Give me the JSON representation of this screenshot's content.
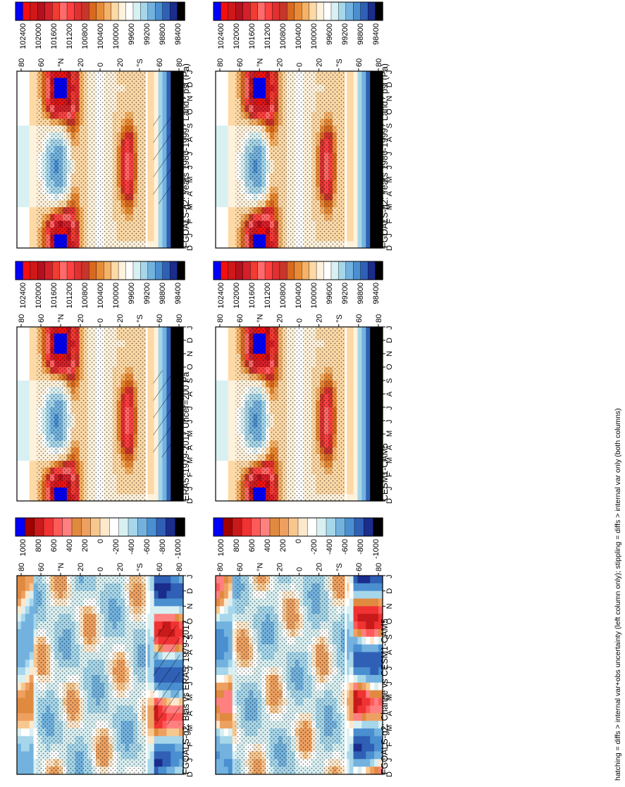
{
  "figure_caption": "hatching = diffs > internal var+obs uncertainty (left column only); stippling = diffs > internal var only (both columns)",
  "colors": {
    "abs_scale": [
      "#000000",
      "#1a2d8c",
      "#3060b5",
      "#4a8fd0",
      "#73b2de",
      "#a6d6ea",
      "#d9f0f2",
      "#ffffff",
      "#fff2dc",
      "#fdd9a6",
      "#f5b268",
      "#e88a36",
      "#d86a20",
      "#c8352a",
      "#e03030",
      "#ff4040",
      "#ff6a6a",
      "#f03c32",
      "#d4202a",
      "#b4101e",
      "#d01818",
      "#f01010",
      "#0000ff"
    ],
    "diff_scale": [
      "#000000",
      "#1a2d8c",
      "#3060b5",
      "#4a8fd0",
      "#73b2de",
      "#a6d6ea",
      "#d9f0f2",
      "#ffffff",
      "#fde8cc",
      "#f8c78e",
      "#eea060",
      "#e08a40",
      "#ff8080",
      "#ff5a5a",
      "#f03232",
      "#c81a1a",
      "#a00000",
      "#0000ff"
    ]
  },
  "months": [
    "D",
    "J",
    "F",
    "M",
    "A",
    "M",
    "J",
    "J",
    "A",
    "S",
    "O",
    "N",
    "D",
    "J"
  ],
  "lat_labels": [
    "80",
    "60",
    "°N",
    "20",
    "0",
    "20",
    "°S",
    "60",
    "80"
  ],
  "chart_data": [
    {
      "type": "heatmap",
      "panel": "top-left",
      "title": "FGOALS-g2: Years 1980-1999 : Land : psl (Pa)",
      "x_axis": "month (D to J)",
      "y_axis": "latitude (80N to 80S)",
      "colorbar_ticks": [
        "102400",
        "102000",
        "101600",
        "101200",
        "100800",
        "100400",
        "100000",
        "99600",
        "99200",
        "98800",
        "98400"
      ],
      "field": "abs",
      "hatching": true,
      "stippling": true
    },
    {
      "type": "heatmap",
      "panel": "top-right",
      "title": "FGOALS-g2: Years 1980-1999 : Land : psl (Pa)",
      "x_axis": "month (D to J)",
      "y_axis": "latitude (80N to 80S)",
      "colorbar_ticks": [
        "102400",
        "102000",
        "101600",
        "101200",
        "100800",
        "100400",
        "100000",
        "99600",
        "99200",
        "98800",
        "98400"
      ],
      "field": "abs",
      "hatching": false,
      "stippling": true
    },
    {
      "type": "heatmap",
      "panel": "middle-left",
      "title": "ERA5: 1979-2017 Uncer=200 Pa",
      "x_axis": "month (D to J)",
      "y_axis": "latitude (80N to 80S)",
      "colorbar_ticks": [
        "102400",
        "102000",
        "101600",
        "101200",
        "100800",
        "100400",
        "100000",
        "99600",
        "99200",
        "98800",
        "98400"
      ],
      "field": "abs",
      "hatching": true,
      "stippling": true
    },
    {
      "type": "heatmap",
      "panel": "middle-right",
      "title": "CESM1-CAM5",
      "x_axis": "month (D to J)",
      "y_axis": "latitude (80N to 80S)",
      "colorbar_ticks": [
        "102400",
        "102000",
        "101600",
        "101200",
        "100800",
        "100400",
        "100000",
        "99600",
        "99200",
        "98800",
        "98400"
      ],
      "field": "abs",
      "hatching": false,
      "stippling": true
    },
    {
      "type": "heatmap",
      "panel": "bottom-left",
      "title": "FGOALS-g2: Bias vs ERA5: 1979-2017",
      "x_axis": "month (D to J)",
      "y_axis": "latitude (80N to 80S)",
      "colorbar_ticks": [
        "1000",
        "800",
        "600",
        "400",
        "200",
        "0",
        "-200",
        "-400",
        "-600",
        "-800",
        "-1000"
      ],
      "field": "diff",
      "hatching": true,
      "stippling": true
    },
    {
      "type": "heatmap",
      "panel": "bottom-right",
      "title": "FGOALS-g2: Change vs CESM1-CAM5",
      "x_axis": "month (D to J)",
      "y_axis": "latitude (80N to 80S)",
      "colorbar_ticks": [
        "1000",
        "800",
        "600",
        "400",
        "200",
        "0",
        "-200",
        "-400",
        "-600",
        "-800",
        "-1000"
      ],
      "field": "diff",
      "hatching": false,
      "stippling": true
    }
  ]
}
